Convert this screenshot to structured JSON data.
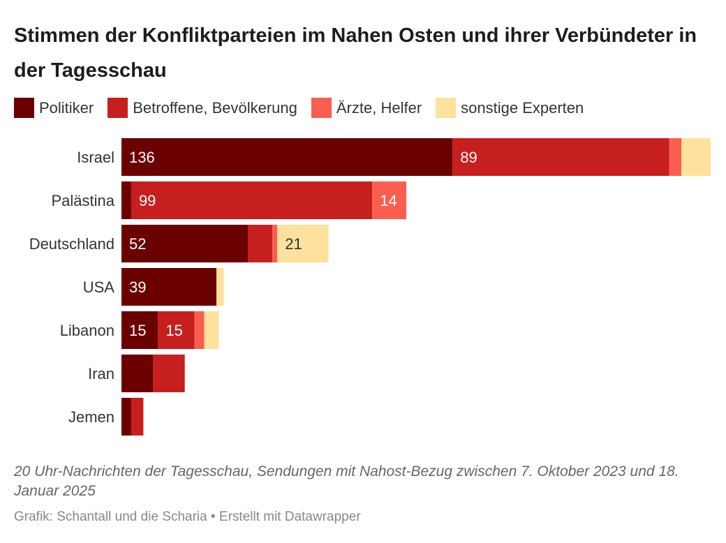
{
  "title": "Stimmen der Konfliktparteien im Nahen Osten und ihrer Verbündeter in der Tagesschau",
  "legend": [
    {
      "label": "Politiker",
      "color": "#6b0000"
    },
    {
      "label": "Betroffene, Bevölkerung",
      "color": "#c71e1e"
    },
    {
      "label": "Ärzte, Helfer",
      "color": "#fa5e4f"
    },
    {
      "label": "sonstige Experten",
      "color": "#fde19c"
    }
  ],
  "notes": "20 Uhr-Nachrichten der Tagesschau, Sendungen mit Nahost-Bezug zwischen 7. Oktober 2023 und 18. Januar 2025",
  "byline": "Grafik: Schantall und die Scharia • Erstellt mit Datawrapper",
  "chart_data": {
    "type": "bar",
    "orientation": "horizontal",
    "stacked": true,
    "categories": [
      "Israel",
      "Palästina",
      "Deutschland",
      "USA",
      "Libanon",
      "Iran",
      "Jemen"
    ],
    "series": [
      {
        "name": "Politiker",
        "color": "#6b0000",
        "values": [
          136,
          4,
          52,
          39,
          15,
          13,
          4
        ]
      },
      {
        "name": "Betroffene, Bevölkerung",
        "color": "#c71e1e",
        "values": [
          89,
          99,
          10,
          0,
          15,
          13,
          5
        ]
      },
      {
        "name": "Ärzte, Helfer",
        "color": "#fa5e4f",
        "values": [
          5,
          14,
          2,
          0,
          4,
          0,
          0
        ]
      },
      {
        "name": "sonstige Experten",
        "color": "#fde19c",
        "values": [
          12,
          0,
          21,
          3,
          6,
          0,
          0
        ]
      }
    ],
    "data_labels": {
      "Israel": [
        "136",
        "89",
        "",
        ""
      ],
      "Palästina": [
        "",
        "99",
        "14",
        ""
      ],
      "Deutschland": [
        "52",
        "",
        "",
        "21"
      ],
      "USA": [
        "39",
        "",
        "",
        ""
      ],
      "Libanon": [
        "15",
        "15",
        "",
        ""
      ],
      "Iran": [
        "",
        "",
        "",
        ""
      ],
      "Jemen": [
        "",
        "",
        "",
        ""
      ]
    },
    "xlim": [
      0,
      242
    ],
    "grid": false,
    "legend_position": "top"
  }
}
